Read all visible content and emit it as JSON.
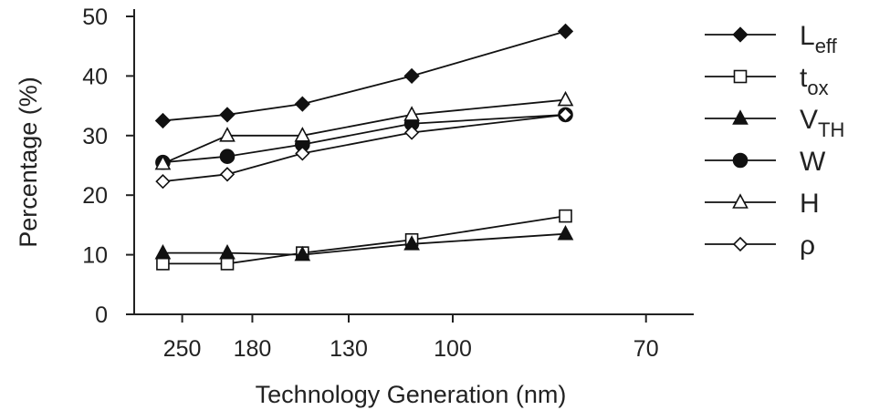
{
  "chart_data": {
    "type": "line",
    "xlabel": "Technology Generation (nm)",
    "ylabel": "Percentage (%)",
    "x_ticks": [
      "250",
      "180",
      "130",
      "100",
      "70"
    ],
    "y_ticks": [
      "0",
      "10",
      "20",
      "30",
      "40",
      "50"
    ],
    "ylim": [
      0,
      50
    ],
    "categories": [
      "250",
      "180",
      "130",
      "100",
      "70"
    ],
    "grid": false,
    "legend_position": "right",
    "series": [
      {
        "name_main": "L",
        "name_sub": "eff",
        "marker": "diamond-filled",
        "x": [
          280,
          200,
          150,
          110,
          80
        ],
        "values": [
          32.5,
          33.5,
          35.3,
          40,
          47.5
        ]
      },
      {
        "name_main": "t",
        "name_sub": "ox",
        "marker": "square-open",
        "x": [
          280,
          200,
          150,
          110,
          80
        ],
        "values": [
          8.5,
          8.5,
          10.3,
          12.5,
          16.5
        ]
      },
      {
        "name_main": "V",
        "name_sub": "TH",
        "marker": "triangle-filled",
        "x": [
          280,
          200,
          150,
          110,
          80
        ],
        "values": [
          10.3,
          10.3,
          10,
          11.8,
          13.5
        ]
      },
      {
        "name_main": "W",
        "name_sub": "",
        "marker": "circle-filled",
        "x": [
          280,
          200,
          150,
          110,
          80
        ],
        "values": [
          25.5,
          26.5,
          28.5,
          32,
          33.5
        ]
      },
      {
        "name_main": "H",
        "name_sub": "",
        "marker": "triangle-open",
        "x": [
          280,
          200,
          150,
          110,
          80
        ],
        "values": [
          25.3,
          30,
          30,
          33.5,
          36
        ]
      },
      {
        "name_main": "ρ",
        "name_sub": "",
        "marker": "diamond-open",
        "x": [
          280,
          200,
          150,
          110,
          80
        ],
        "values": [
          22.3,
          23.5,
          27,
          30.5,
          33.5
        ]
      }
    ]
  }
}
